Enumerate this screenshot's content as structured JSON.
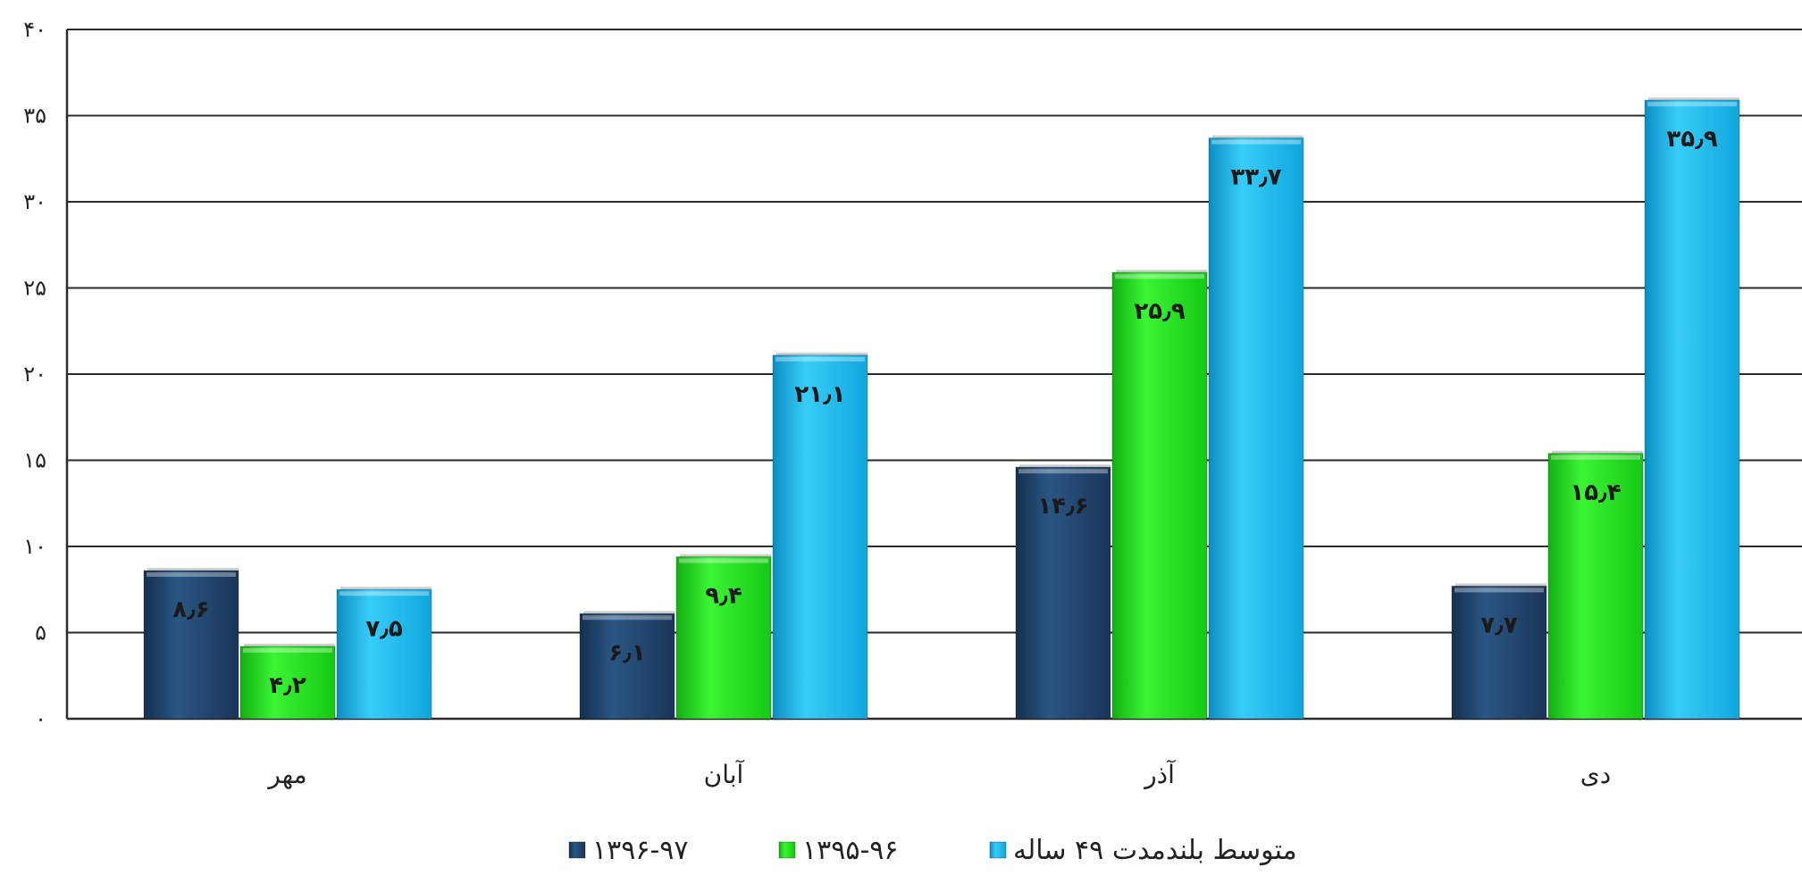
{
  "chart_data": {
    "type": "bar",
    "title": "",
    "xlabel": "",
    "ylabel": "",
    "ylim": [
      0,
      40
    ],
    "yticks": [
      0,
      5,
      10,
      15,
      20,
      25,
      30,
      35,
      40
    ],
    "ytick_labels": [
      "۰",
      "۵",
      "۱۰",
      "۱۵",
      "۲۰",
      "۲۵",
      "۳۰",
      "۳۵",
      "۴۰"
    ],
    "grid": true,
    "legend_position": "bottom",
    "categories": [
      "مهر",
      "آبان",
      "آذر",
      "دی"
    ],
    "series": [
      {
        "name": "۱۳۹۶-۹۷",
        "color": "#1f3f66",
        "values": [
          8.6,
          6.1,
          14.6,
          7.7
        ],
        "labels": [
          "۸٫۶",
          "۶٫۱",
          "۱۴٫۶",
          "۷٫۷"
        ]
      },
      {
        "name": "۱۳۹۵-۹۶",
        "color": "#22e01b",
        "values": [
          4.2,
          9.4,
          25.9,
          15.4
        ],
        "labels": [
          "۴٫۲",
          "۹٫۴",
          "۲۵٫۹",
          "۱۵٫۴"
        ]
      },
      {
        "name": "متوسط بلندمدت ۴۹ ساله",
        "color": "#14b8ee",
        "values": [
          7.5,
          21.1,
          33.7,
          35.9
        ],
        "labels": [
          "۷٫۵",
          "۲۱٫۱",
          "۳۳٫۷",
          "۳۵٫۹"
        ]
      }
    ]
  }
}
